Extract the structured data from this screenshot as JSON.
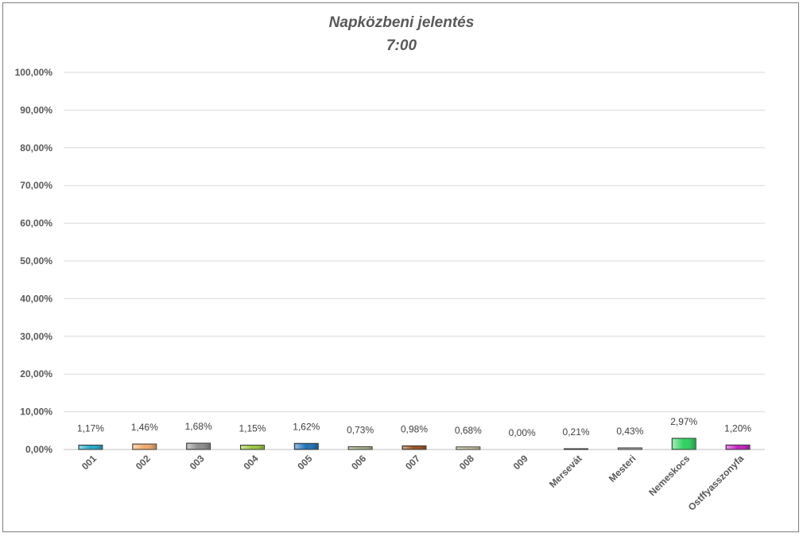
{
  "chart_data": {
    "type": "bar",
    "title": "Napközbeni jelentés",
    "subtitle": "7:00",
    "categories": [
      "001",
      "002",
      "003",
      "004",
      "005",
      "006",
      "007",
      "008",
      "009",
      "Mersevát",
      "Mesteri",
      "Nemeskocs",
      "Ostffyasszonyfa"
    ],
    "values": [
      1.17,
      1.46,
      1.68,
      1.15,
      1.62,
      0.73,
      0.98,
      0.68,
      0.0,
      0.21,
      0.43,
      2.97,
      1.2
    ],
    "data_labels": [
      "1,17%",
      "1,46%",
      "1,68%",
      "1,15%",
      "1,62%",
      "0,73%",
      "0,98%",
      "0,68%",
      "0,00%",
      "0,21%",
      "0,43%",
      "2,97%",
      "1,20%"
    ],
    "bar_colors": [
      "#22a7c7",
      "#f0a568",
      "#8c8c8c",
      "#9bc53d",
      "#1f6fb5",
      "#a8b58c",
      "#9a4f1e",
      "#c9c39e",
      "#cccccc",
      "#d9d9d9",
      "#b3b3b3",
      "#2ed15f",
      "#c21fc2"
    ],
    "ylim": [
      0,
      100
    ],
    "yticks": [
      "0,00%",
      "10,00%",
      "20,00%",
      "30,00%",
      "40,00%",
      "50,00%",
      "60,00%",
      "70,00%",
      "80,00%",
      "90,00%",
      "100,00%"
    ],
    "grid": true,
    "legend": "none",
    "xlabel": "",
    "ylabel": ""
  }
}
